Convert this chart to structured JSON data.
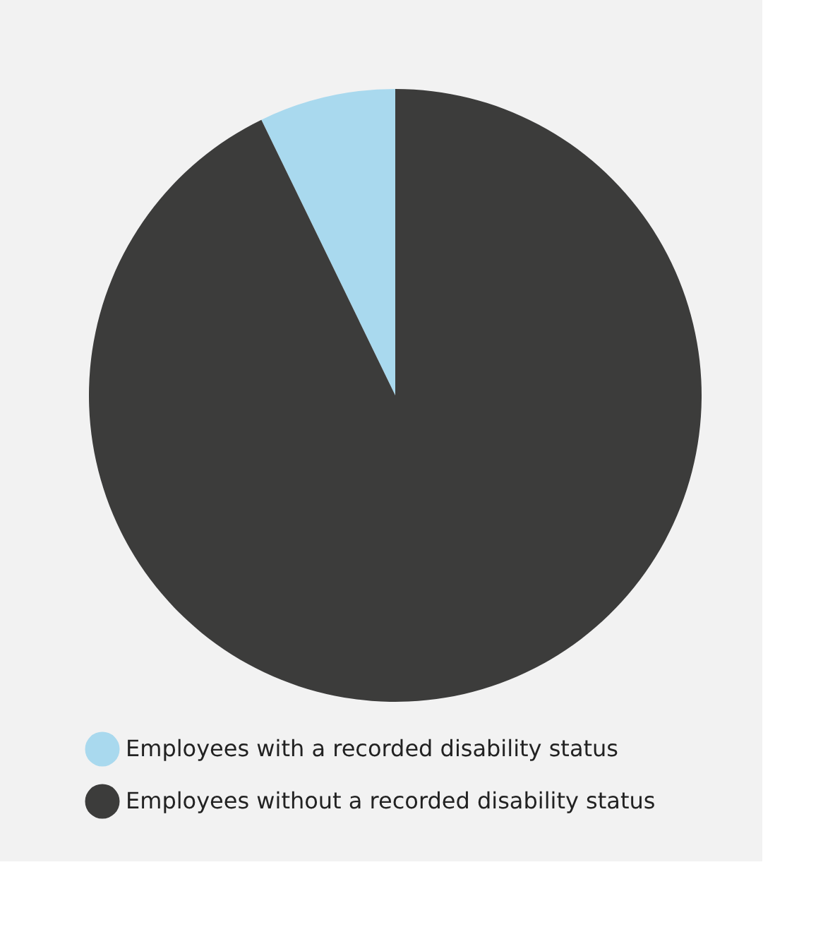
{
  "chart_data": {
    "type": "pie",
    "categories": [
      "Employees with a recorded disability status",
      "Employees without a recorded disability status"
    ],
    "values": [
      7.2,
      92.8
    ],
    "colors": [
      "#a9d9ee",
      "#3c3c3b"
    ],
    "legend": "bottom"
  }
}
